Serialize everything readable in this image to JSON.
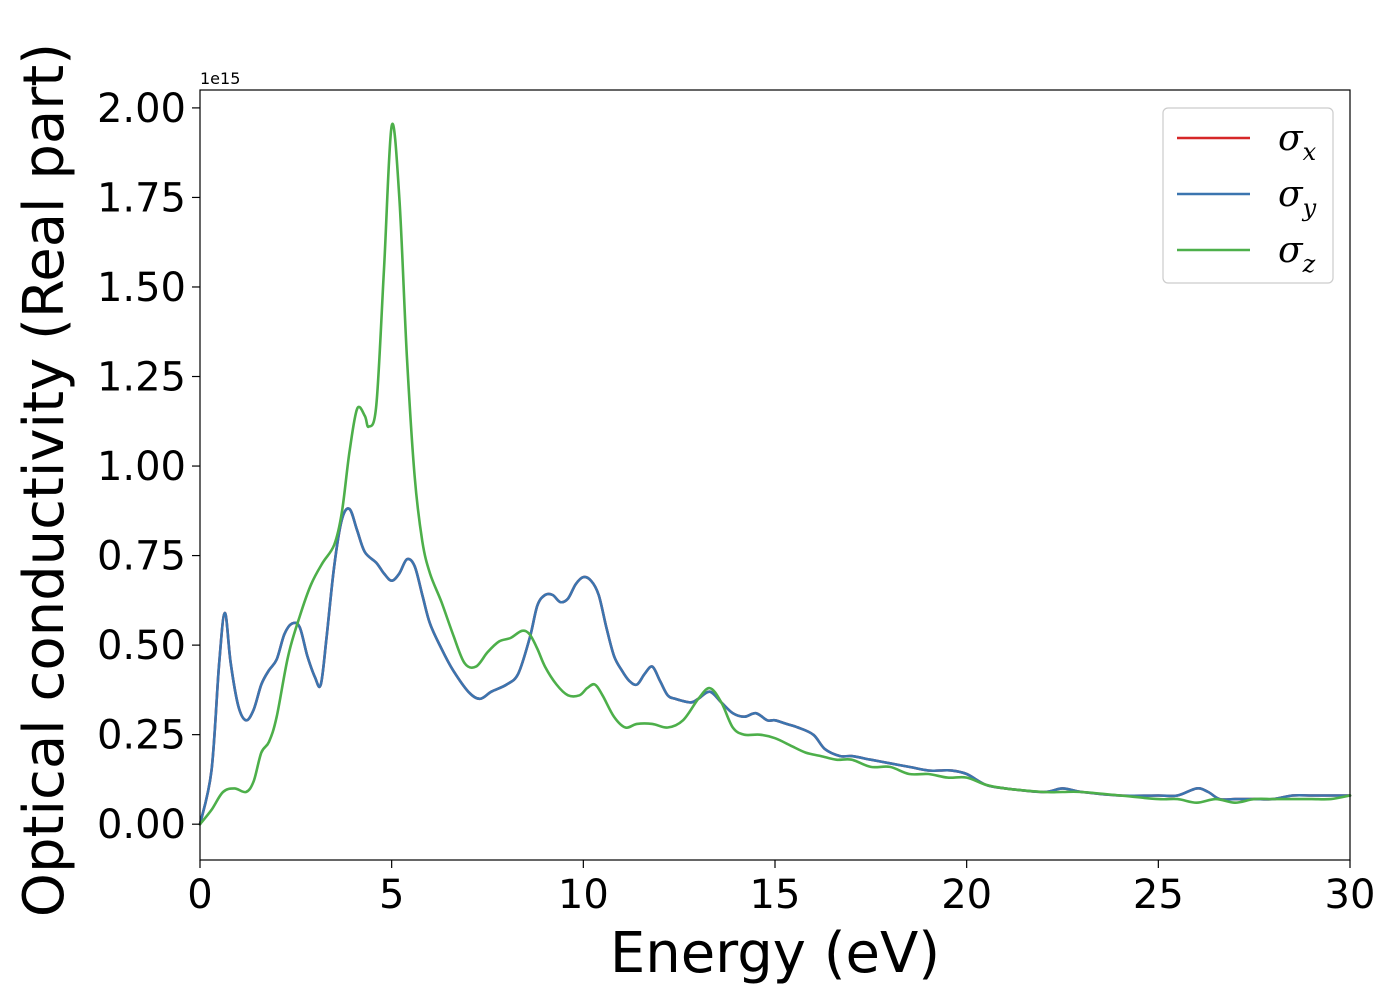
{
  "chart_data": {
    "type": "line",
    "xlabel": "Energy (eV)",
    "ylabel": "Optical conductivity (Real part)",
    "y_offset_label": "1e15",
    "xlim": [
      0,
      30
    ],
    "ylim": [
      -0.1,
      2.05
    ],
    "x_ticks": [
      0,
      5,
      10,
      15,
      20,
      25,
      30
    ],
    "x_tick_labels": [
      "0",
      "5",
      "10",
      "15",
      "20",
      "25",
      "30"
    ],
    "y_ticks": [
      0.0,
      0.25,
      0.5,
      0.75,
      1.0,
      1.25,
      1.5,
      1.75,
      2.0
    ],
    "y_tick_labels": [
      "0.00",
      "0.25",
      "0.50",
      "0.75",
      "1.00",
      "1.25",
      "1.50",
      "1.75",
      "2.00"
    ],
    "grid": false,
    "legend_position": "top-right",
    "series": [
      {
        "name": "σx",
        "symbol": "σ",
        "subscript": "x",
        "color": "#d62728",
        "same_as": "σy",
        "x": [
          0,
          0.3,
          0.5,
          0.65,
          0.8,
          1.0,
          1.2,
          1.4,
          1.6,
          1.8,
          2.0,
          2.2,
          2.4,
          2.6,
          2.8,
          3.0,
          3.15,
          3.3,
          3.5,
          3.7,
          3.9,
          4.1,
          4.3,
          4.6,
          4.8,
          5.0,
          5.2,
          5.4,
          5.6,
          5.8,
          6.0,
          6.3,
          6.6,
          7.0,
          7.3,
          7.6,
          8.0,
          8.3,
          8.6,
          8.8,
          9.0,
          9.2,
          9.4,
          9.6,
          9.8,
          10.0,
          10.2,
          10.4,
          10.6,
          10.8,
          11.0,
          11.2,
          11.4,
          11.6,
          11.8,
          12.0,
          12.2,
          12.4,
          12.8,
          13.0,
          13.3,
          13.6,
          13.9,
          14.2,
          14.5,
          14.8,
          15.0,
          15.3,
          15.6,
          16.0,
          16.3,
          16.7,
          17.0,
          17.5,
          18.0,
          18.5,
          19.0,
          19.3,
          19.6,
          20.0,
          20.5,
          21.0,
          22.0,
          22.5,
          23.0,
          24.0,
          25.0,
          25.5,
          26.0,
          26.3,
          26.6,
          27.0,
          27.5,
          28.0,
          28.5,
          29.0,
          29.5,
          30.0
        ],
        "values": [
          0.0,
          0.15,
          0.45,
          0.59,
          0.45,
          0.33,
          0.29,
          0.32,
          0.39,
          0.43,
          0.46,
          0.53,
          0.56,
          0.55,
          0.47,
          0.41,
          0.39,
          0.52,
          0.72,
          0.85,
          0.88,
          0.82,
          0.76,
          0.73,
          0.7,
          0.68,
          0.7,
          0.74,
          0.72,
          0.64,
          0.56,
          0.49,
          0.43,
          0.37,
          0.35,
          0.37,
          0.39,
          0.42,
          0.52,
          0.61,
          0.64,
          0.64,
          0.62,
          0.63,
          0.67,
          0.69,
          0.68,
          0.64,
          0.55,
          0.47,
          0.43,
          0.4,
          0.39,
          0.42,
          0.44,
          0.4,
          0.36,
          0.35,
          0.34,
          0.35,
          0.37,
          0.34,
          0.31,
          0.3,
          0.31,
          0.29,
          0.29,
          0.28,
          0.27,
          0.25,
          0.21,
          0.19,
          0.19,
          0.18,
          0.17,
          0.16,
          0.15,
          0.15,
          0.15,
          0.14,
          0.11,
          0.1,
          0.09,
          0.1,
          0.09,
          0.08,
          0.08,
          0.08,
          0.1,
          0.09,
          0.07,
          0.07,
          0.07,
          0.07,
          0.08,
          0.08,
          0.08,
          0.08
        ]
      },
      {
        "name": "σy",
        "symbol": "σ",
        "subscript": "y",
        "color": "#3b75af",
        "x": [
          0,
          0.3,
          0.5,
          0.65,
          0.8,
          1.0,
          1.2,
          1.4,
          1.6,
          1.8,
          2.0,
          2.2,
          2.4,
          2.6,
          2.8,
          3.0,
          3.15,
          3.3,
          3.5,
          3.7,
          3.9,
          4.1,
          4.3,
          4.6,
          4.8,
          5.0,
          5.2,
          5.4,
          5.6,
          5.8,
          6.0,
          6.3,
          6.6,
          7.0,
          7.3,
          7.6,
          8.0,
          8.3,
          8.6,
          8.8,
          9.0,
          9.2,
          9.4,
          9.6,
          9.8,
          10.0,
          10.2,
          10.4,
          10.6,
          10.8,
          11.0,
          11.2,
          11.4,
          11.6,
          11.8,
          12.0,
          12.2,
          12.4,
          12.8,
          13.0,
          13.3,
          13.6,
          13.9,
          14.2,
          14.5,
          14.8,
          15.0,
          15.3,
          15.6,
          16.0,
          16.3,
          16.7,
          17.0,
          17.5,
          18.0,
          18.5,
          19.0,
          19.3,
          19.6,
          20.0,
          20.5,
          21.0,
          22.0,
          22.5,
          23.0,
          24.0,
          25.0,
          25.5,
          26.0,
          26.3,
          26.6,
          27.0,
          27.5,
          28.0,
          28.5,
          29.0,
          29.5,
          30.0
        ],
        "values": [
          0.0,
          0.15,
          0.45,
          0.59,
          0.45,
          0.33,
          0.29,
          0.32,
          0.39,
          0.43,
          0.46,
          0.53,
          0.56,
          0.55,
          0.47,
          0.41,
          0.39,
          0.52,
          0.72,
          0.85,
          0.88,
          0.82,
          0.76,
          0.73,
          0.7,
          0.68,
          0.7,
          0.74,
          0.72,
          0.64,
          0.56,
          0.49,
          0.43,
          0.37,
          0.35,
          0.37,
          0.39,
          0.42,
          0.52,
          0.61,
          0.64,
          0.64,
          0.62,
          0.63,
          0.67,
          0.69,
          0.68,
          0.64,
          0.55,
          0.47,
          0.43,
          0.4,
          0.39,
          0.42,
          0.44,
          0.4,
          0.36,
          0.35,
          0.34,
          0.35,
          0.37,
          0.34,
          0.31,
          0.3,
          0.31,
          0.29,
          0.29,
          0.28,
          0.27,
          0.25,
          0.21,
          0.19,
          0.19,
          0.18,
          0.17,
          0.16,
          0.15,
          0.15,
          0.15,
          0.14,
          0.11,
          0.1,
          0.09,
          0.1,
          0.09,
          0.08,
          0.08,
          0.08,
          0.1,
          0.09,
          0.07,
          0.07,
          0.07,
          0.07,
          0.08,
          0.08,
          0.08,
          0.08
        ]
      },
      {
        "name": "σz",
        "symbol": "σ",
        "subscript": "z",
        "color": "#4daf4a",
        "x": [
          0,
          0.3,
          0.6,
          0.9,
          1.2,
          1.4,
          1.6,
          1.8,
          2.0,
          2.3,
          2.6,
          2.9,
          3.2,
          3.5,
          3.7,
          3.9,
          4.1,
          4.3,
          4.4,
          4.6,
          4.8,
          5.0,
          5.2,
          5.4,
          5.6,
          5.8,
          6.0,
          6.3,
          6.6,
          6.9,
          7.2,
          7.5,
          7.8,
          8.1,
          8.4,
          8.6,
          8.8,
          9.0,
          9.3,
          9.6,
          9.9,
          10.1,
          10.3,
          10.5,
          10.8,
          11.1,
          11.4,
          11.8,
          12.2,
          12.6,
          13.0,
          13.3,
          13.6,
          13.9,
          14.2,
          14.6,
          15.0,
          15.4,
          15.8,
          16.2,
          16.6,
          17.0,
          17.5,
          18.0,
          18.5,
          19.0,
          19.5,
          20.0,
          20.5,
          21.0,
          22.0,
          22.5,
          23.0,
          24.0,
          25.0,
          25.5,
          26.0,
          26.5,
          27.0,
          27.5,
          28.0,
          28.5,
          29.0,
          29.5,
          30.0
        ],
        "values": [
          0.0,
          0.04,
          0.09,
          0.1,
          0.09,
          0.12,
          0.2,
          0.23,
          0.3,
          0.47,
          0.58,
          0.67,
          0.73,
          0.78,
          0.87,
          1.04,
          1.16,
          1.14,
          1.11,
          1.17,
          1.55,
          1.95,
          1.75,
          1.3,
          0.97,
          0.79,
          0.7,
          0.62,
          0.53,
          0.45,
          0.44,
          0.48,
          0.51,
          0.52,
          0.54,
          0.53,
          0.49,
          0.44,
          0.39,
          0.36,
          0.36,
          0.38,
          0.39,
          0.36,
          0.3,
          0.27,
          0.28,
          0.28,
          0.27,
          0.29,
          0.35,
          0.38,
          0.34,
          0.27,
          0.25,
          0.25,
          0.24,
          0.22,
          0.2,
          0.19,
          0.18,
          0.18,
          0.16,
          0.16,
          0.14,
          0.14,
          0.13,
          0.13,
          0.11,
          0.1,
          0.09,
          0.09,
          0.09,
          0.08,
          0.07,
          0.07,
          0.06,
          0.07,
          0.06,
          0.07,
          0.07,
          0.07,
          0.07,
          0.07,
          0.08
        ]
      }
    ]
  }
}
